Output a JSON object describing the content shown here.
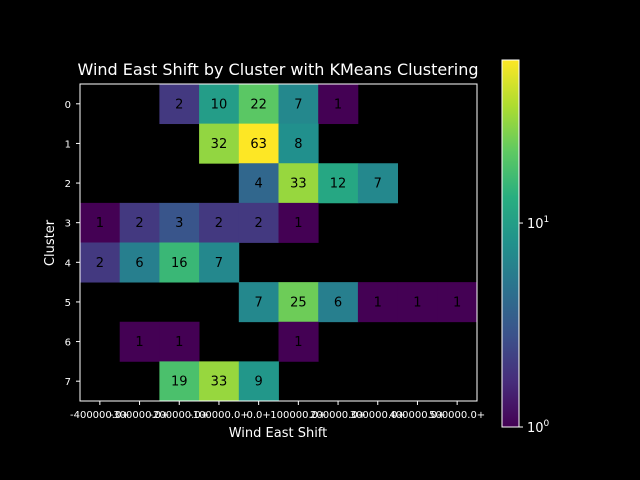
{
  "chart_data": {
    "type": "heatmap",
    "title": "Wind East Shift by Cluster with KMeans Clustering",
    "xlabel": "Wind East Shift",
    "ylabel": "Cluster",
    "x_categories": [
      "-400000.0+",
      "-300000.0+",
      "-200000.0+",
      "-100000.0+",
      "0.0+",
      "100000.0+",
      "200000.0+",
      "300000.0+",
      "400000.0+",
      "500000.0+"
    ],
    "y_categories": [
      "0",
      "1",
      "2",
      "3",
      "4",
      "5",
      "6",
      "7"
    ],
    "values": [
      [
        null,
        null,
        2,
        10,
        22,
        7,
        1,
        null,
        null,
        null
      ],
      [
        null,
        null,
        null,
        32,
        63,
        8,
        null,
        null,
        null,
        null
      ],
      [
        null,
        null,
        null,
        null,
        4,
        33,
        12,
        7,
        null,
        null
      ],
      [
        1,
        2,
        3,
        2,
        2,
        1,
        null,
        null,
        null,
        null
      ],
      [
        2,
        6,
        16,
        7,
        null,
        null,
        null,
        null,
        null,
        null
      ],
      [
        null,
        null,
        null,
        null,
        7,
        25,
        6,
        1,
        1,
        1
      ],
      [
        null,
        1,
        1,
        null,
        null,
        1,
        null,
        null,
        null,
        null
      ],
      [
        null,
        null,
        19,
        33,
        9,
        null,
        null,
        null,
        null,
        null
      ]
    ],
    "colormap": "viridis",
    "color_scale": "log",
    "color_range": [
      1,
      63
    ],
    "colorbar": {
      "ticks": [
        {
          "base": "10",
          "exp": "0",
          "value": 1
        },
        {
          "base": "10",
          "exp": "1",
          "value": 10
        }
      ]
    },
    "background": "#000000"
  }
}
